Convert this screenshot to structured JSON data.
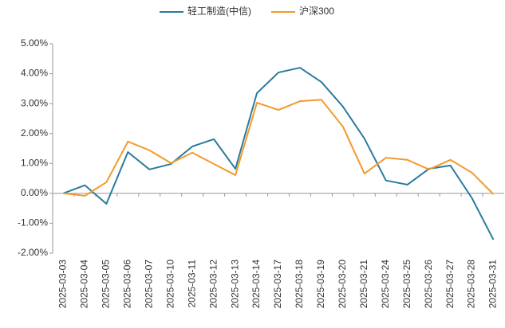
{
  "chart_data": {
    "type": "line",
    "categories": [
      "2025-03-03",
      "2025-03-04",
      "2025-03-05",
      "2025-03-06",
      "2025-03-07",
      "2025-03-10",
      "2025-03-11",
      "2025-03-12",
      "2025-03-13",
      "2025-03-14",
      "2025-03-17",
      "2025-03-18",
      "2025-03-19",
      "2025-03-20",
      "2025-03-21",
      "2025-03-24",
      "2025-03-25",
      "2025-03-26",
      "2025-03-27",
      "2025-03-28",
      "2025-03-31"
    ],
    "series": [
      {
        "name": "轻工制造(中信)",
        "color": "#2b7a9e",
        "values": [
          0,
          0.27,
          -0.35,
          1.38,
          0.8,
          0.98,
          1.57,
          1.81,
          0.82,
          3.35,
          4.04,
          4.2,
          3.72,
          2.9,
          1.83,
          0.43,
          0.29,
          0.82,
          0.93,
          -0.16,
          -1.55
        ]
      },
      {
        "name": "沪深300",
        "color": "#f39a2b",
        "values": [
          0,
          -0.08,
          0.37,
          1.73,
          1.44,
          1.01,
          1.36,
          0.98,
          0.61,
          3.03,
          2.79,
          3.08,
          3.13,
          2.23,
          0.66,
          1.19,
          1.12,
          0.8,
          1.12,
          0.69,
          -0.03
        ]
      }
    ],
    "ylim": [
      -2,
      5
    ],
    "yticks": [
      {
        "value": -2,
        "label": "-2.00%"
      },
      {
        "value": -1,
        "label": "-1.00%"
      },
      {
        "value": 0,
        "label": "0.00%"
      },
      {
        "value": 1,
        "label": "1.00%"
      },
      {
        "value": 2,
        "label": "2.00%"
      },
      {
        "value": 3,
        "label": "3.00%"
      },
      {
        "value": 4,
        "label": "4.00%"
      },
      {
        "value": 5,
        "label": "5.00%"
      }
    ],
    "grid": false,
    "legend": "top"
  }
}
